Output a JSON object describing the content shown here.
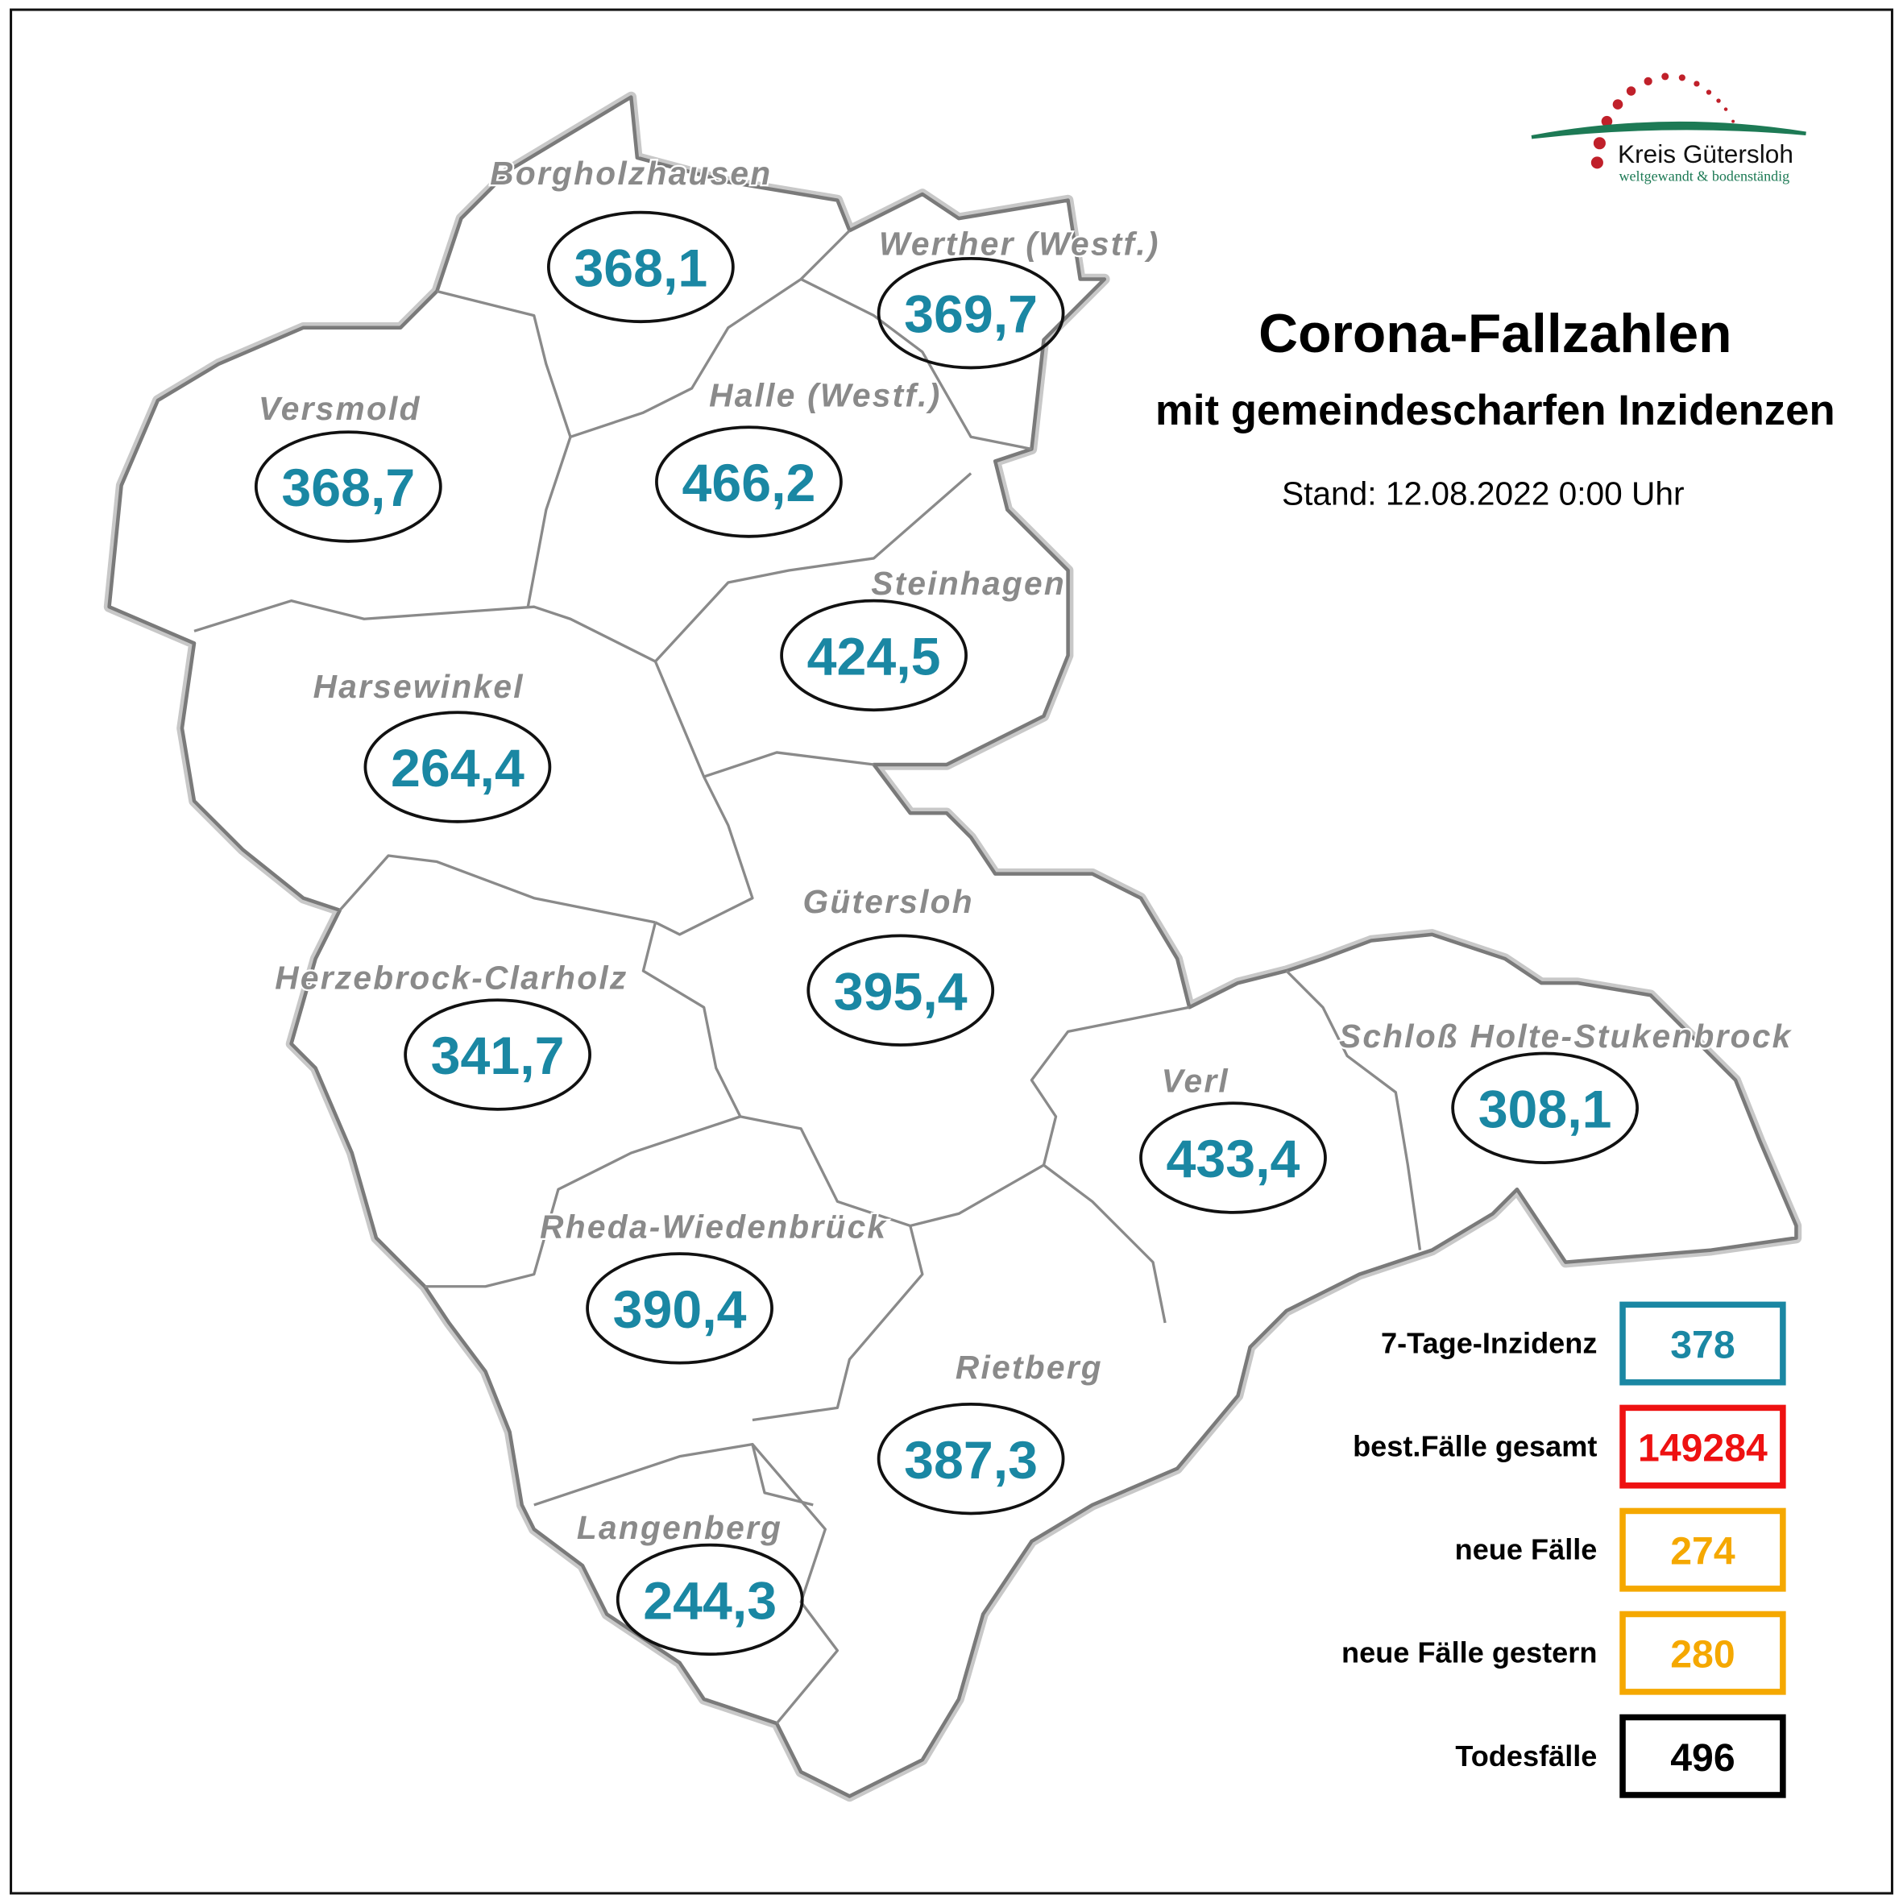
{
  "header": {
    "title": "Corona-Fallzahlen",
    "subtitle": "mit gemeindescharfen Inzidenzen",
    "stand": "Stand: 12.08.2022 0:00 Uhr"
  },
  "logo": {
    "name": "Kreis Gütersloh",
    "tagline": "weltgewandt & bodenständig",
    "colors": {
      "dots": "#c0202a",
      "arc": "#1d7a55"
    }
  },
  "municipalities": [
    {
      "name": "Borgholzhausen",
      "incidence": "368,1"
    },
    {
      "name": "Werther (Westf.)",
      "incidence": "369,7"
    },
    {
      "name": "Versmold",
      "incidence": "368,7"
    },
    {
      "name": "Halle (Westf.)",
      "incidence": "466,2"
    },
    {
      "name": "Steinhagen",
      "incidence": "424,5"
    },
    {
      "name": "Harsewinkel",
      "incidence": "264,4"
    },
    {
      "name": "Gütersloh",
      "incidence": "395,4"
    },
    {
      "name": "Herzebrock-Clarholz",
      "incidence": "341,7"
    },
    {
      "name": "Schloß Holte-Stukenbrock",
      "incidence": "308,1"
    },
    {
      "name": "Verl",
      "incidence": "433,4"
    },
    {
      "name": "Rheda-Wiedenbrück",
      "incidence": "390,4"
    },
    {
      "name": "Rietberg",
      "incidence": "387,3"
    },
    {
      "name": "Langenberg",
      "incidence": "244,3"
    }
  ],
  "legend": [
    {
      "label": "7-Tage-Inzidenz",
      "value": "378",
      "color": "#1a87a3"
    },
    {
      "label": "best.Fälle gesamt",
      "value": "149284",
      "color": "#ee1111"
    },
    {
      "label": "neue Fälle",
      "value": "274",
      "color": "#f5a800"
    },
    {
      "label": "neue Fälle gestern",
      "value": "280",
      "color": "#f5a800"
    },
    {
      "label": "Todesfälle",
      "value": "496",
      "color": "#000000"
    }
  ],
  "colors": {
    "incidence_text": "#1a87a3",
    "region_label": "#8a8a8a",
    "outline": "#7a7a7a"
  }
}
